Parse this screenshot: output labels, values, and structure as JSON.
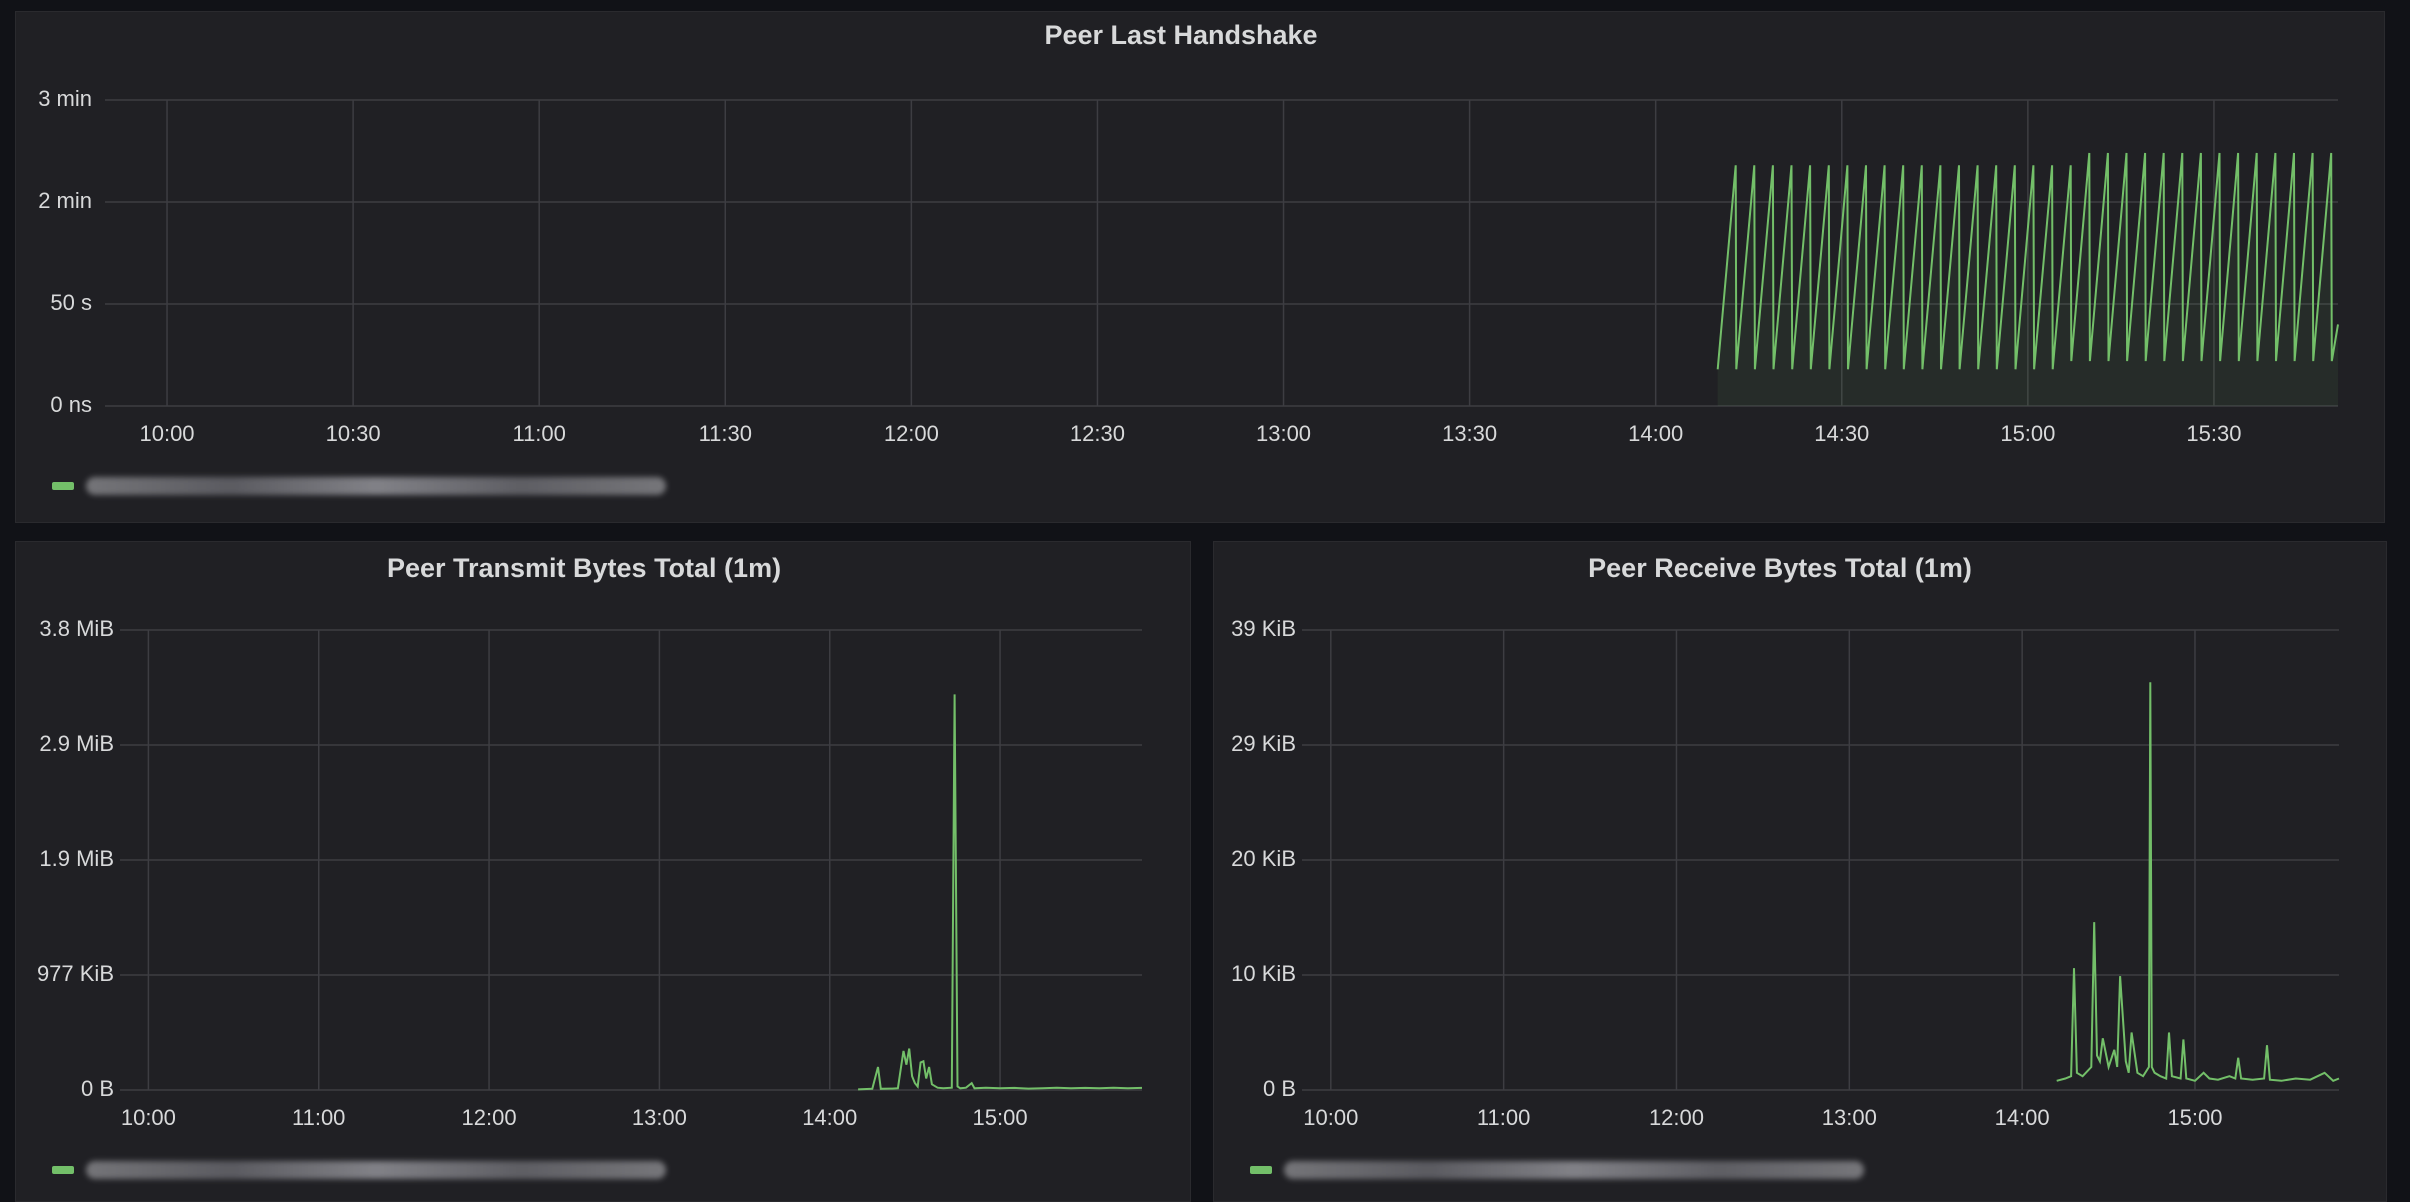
{
  "chart_data": [
    {
      "type": "line",
      "title": "Peer Last Handshake",
      "xlim": [
        590,
        950
      ],
      "xticks": [
        {
          "value": 600,
          "label": "10:00"
        },
        {
          "value": 630,
          "label": "10:30"
        },
        {
          "value": 660,
          "label": "11:00"
        },
        {
          "value": 690,
          "label": "11:30"
        },
        {
          "value": 720,
          "label": "12:00"
        },
        {
          "value": 750,
          "label": "12:30"
        },
        {
          "value": 780,
          "label": "13:00"
        },
        {
          "value": 810,
          "label": "13:30"
        },
        {
          "value": 840,
          "label": "14:00"
        },
        {
          "value": 870,
          "label": "14:30"
        },
        {
          "value": 900,
          "label": "15:00"
        },
        {
          "value": 930,
          "label": "15:30"
        }
      ],
      "ylim": [
        0,
        150
      ],
      "yticks": [
        {
          "value": 0,
          "label": "0 ns"
        },
        {
          "value": 50,
          "label": "50 s"
        },
        {
          "value": 100,
          "label": "2 min"
        },
        {
          "value": 150,
          "label": "3 min"
        }
      ],
      "grid": true,
      "series": [
        {
          "color": "#73bf69",
          "fill": true,
          "x": [
            850,
            852.9,
            853,
            855.9,
            856,
            858.9,
            859,
            861.9,
            862,
            864.9,
            865,
            867.9,
            868,
            870.9,
            871,
            873.9,
            874,
            876.9,
            877,
            879.9,
            880,
            882.9,
            883,
            885.9,
            886,
            888.9,
            889,
            891.9,
            892,
            894.9,
            895,
            897.9,
            898,
            900.9,
            901,
            903.9,
            904,
            906.9,
            907,
            909.9,
            910,
            912.9,
            913,
            915.9,
            916,
            918.9,
            919,
            921.9,
            922,
            924.9,
            925,
            927.9,
            928,
            930.9,
            931,
            933.9,
            934,
            936.9,
            937,
            939.9,
            940,
            942.9,
            943,
            945.9,
            946,
            948.9,
            949,
            950
          ],
          "values": [
            18,
            118,
            18,
            118,
            18,
            118,
            18,
            118,
            18,
            118,
            18,
            118,
            18,
            118,
            18,
            118,
            18,
            118,
            18,
            118,
            18,
            118,
            18,
            118,
            18,
            118,
            18,
            118,
            18,
            118,
            18,
            118,
            18,
            118,
            18,
            118,
            18,
            118,
            22,
            124,
            22,
            124,
            22,
            124,
            22,
            124,
            22,
            124,
            22,
            124,
            22,
            124,
            22,
            124,
            22,
            124,
            22,
            124,
            22,
            124,
            22,
            124,
            22,
            124,
            22,
            124,
            22,
            40
          ]
        }
      ]
    },
    {
      "type": "line",
      "title": "Peer Transmit Bytes Total (1m)",
      "xlim": [
        590,
        950
      ],
      "xticks": [
        {
          "value": 600,
          "label": "10:00"
        },
        {
          "value": 660,
          "label": "11:00"
        },
        {
          "value": 720,
          "label": "12:00"
        },
        {
          "value": 780,
          "label": "13:00"
        },
        {
          "value": 840,
          "label": "14:00"
        },
        {
          "value": 900,
          "label": "15:00"
        }
      ],
      "ylim": [
        0,
        4000000
      ],
      "yticks": [
        {
          "value": 0,
          "label": "0 B"
        },
        {
          "value": 1000000,
          "label": "977 KiB"
        },
        {
          "value": 2000000,
          "label": "1.9 MiB"
        },
        {
          "value": 3000000,
          "label": "2.9 MiB"
        },
        {
          "value": 4000000,
          "label": "3.8 MiB"
        }
      ],
      "grid": true,
      "series": [
        {
          "color": "#73bf69",
          "x": [
            850,
            852,
            855,
            857,
            858,
            862,
            864,
            865,
            866,
            867,
            868,
            869,
            870,
            871,
            872,
            873,
            874,
            875,
            876,
            878,
            880,
            883,
            884,
            885,
            886,
            888,
            890,
            891,
            895,
            900,
            905,
            910,
            915,
            920,
            925,
            930,
            935,
            940,
            945,
            950
          ],
          "values": [
            5000,
            8000,
            10000,
            200000,
            10000,
            12000,
            15000,
            180000,
            340000,
            220000,
            360000,
            120000,
            60000,
            30000,
            240000,
            250000,
            100000,
            200000,
            50000,
            20000,
            15000,
            20000,
            3440000,
            30000,
            15000,
            20000,
            60000,
            15000,
            20000,
            15000,
            18000,
            12000,
            15000,
            20000,
            15000,
            18000,
            15000,
            20000,
            15000,
            18000
          ]
        }
      ]
    },
    {
      "type": "line",
      "title": "Peer Receive Bytes Total (1m)",
      "xlim": [
        590,
        950
      ],
      "xticks": [
        {
          "value": 600,
          "label": "10:00"
        },
        {
          "value": 660,
          "label": "11:00"
        },
        {
          "value": 720,
          "label": "12:00"
        },
        {
          "value": 780,
          "label": "13:00"
        },
        {
          "value": 840,
          "label": "14:00"
        },
        {
          "value": 900,
          "label": "15:00"
        }
      ],
      "ylim": [
        0,
        40000
      ],
      "yticks": [
        {
          "value": 0,
          "label": "0 B"
        },
        {
          "value": 10000,
          "label": "10 KiB"
        },
        {
          "value": 20000,
          "label": "20 KiB"
        },
        {
          "value": 30000,
          "label": "29 KiB"
        },
        {
          "value": 40000,
          "label": "39 KiB"
        }
      ],
      "grid": true,
      "series": [
        {
          "color": "#73bf69",
          "x": [
            852,
            855,
            857,
            858,
            859,
            861,
            864,
            865,
            866,
            867,
            868,
            870,
            872,
            873,
            874,
            876,
            877,
            878,
            880,
            882,
            884,
            884.5,
            885,
            886,
            888,
            890,
            891,
            892,
            895,
            896,
            897,
            900,
            903,
            905,
            908,
            912,
            914,
            915,
            916,
            920,
            924,
            925,
            926,
            930,
            935,
            940,
            945,
            948,
            950
          ],
          "values": [
            800,
            1000,
            1200,
            10600,
            1500,
            1200,
            2000,
            14600,
            3000,
            2500,
            4500,
            2000,
            3500,
            2000,
            9900,
            2500,
            1500,
            5000,
            1500,
            1200,
            2000,
            35450,
            2000,
            1500,
            1200,
            1000,
            5000,
            1200,
            1000,
            4400,
            1000,
            800,
            1500,
            1000,
            900,
            1200,
            1000,
            2800,
            1000,
            900,
            1000,
            3900,
            900,
            800,
            1000,
            900,
            1500,
            800,
            1000
          ]
        }
      ]
    }
  ]
}
